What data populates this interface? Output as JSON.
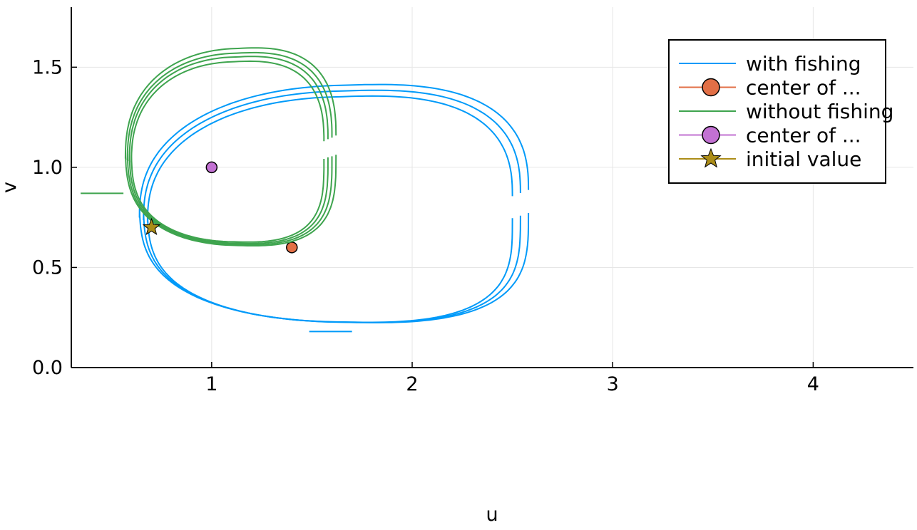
{
  "chart_data": {
    "type": "line",
    "title": "",
    "xlabel": "u",
    "ylabel": "v",
    "xlim": [
      0.3,
      4.5
    ],
    "ylim": [
      0.0,
      1.8
    ],
    "xticks": [
      {
        "value": 1,
        "label": "1"
      },
      {
        "value": 2,
        "label": "2"
      },
      {
        "value": 3,
        "label": "3"
      },
      {
        "value": 4,
        "label": "4"
      }
    ],
    "yticks": [
      {
        "value": 0.0,
        "label": "0.0"
      },
      {
        "value": 0.5,
        "label": "0.5"
      },
      {
        "value": 1.0,
        "label": "1.0"
      },
      {
        "value": 1.5,
        "label": "1.5"
      }
    ],
    "grid": true,
    "legend_position": "top-right",
    "series": [
      {
        "name": "with fishing",
        "kind": "orbit",
        "color": "#009AF9",
        "loops": [
          {
            "umin": 0.68,
            "umax": 2.5,
            "vmin": 0.18,
            "vmax": 1.4
          },
          {
            "umin": 0.66,
            "umax": 2.54,
            "vmin": 0.178,
            "vmax": 1.43
          },
          {
            "umin": 0.64,
            "umax": 2.58,
            "vmin": 0.176,
            "vmax": 1.46
          }
        ],
        "start": [
          0.7,
          0.7
        ],
        "end": [
          1.7,
          0.18
        ]
      },
      {
        "name": "center of ...",
        "kind": "point",
        "color": "#E26F46",
        "marker": "circle",
        "points": [
          [
            1.4,
            0.6
          ]
        ]
      },
      {
        "name": "without fishing",
        "kind": "orbit",
        "color": "#3EA44E",
        "loops": [
          {
            "umin": 0.6,
            "umax": 1.56,
            "vmin": 0.59,
            "vmax": 1.565
          },
          {
            "umin": 0.59,
            "umax": 1.58,
            "vmin": 0.582,
            "vmax": 1.59
          },
          {
            "umin": 0.58,
            "umax": 1.6,
            "vmin": 0.575,
            "vmax": 1.61
          },
          {
            "umin": 0.57,
            "umax": 1.62,
            "vmin": 0.568,
            "vmax": 1.635
          }
        ],
        "start": [
          0.7,
          0.7
        ],
        "end": [
          0.56,
          0.87
        ]
      },
      {
        "name": "center of ...",
        "kind": "point",
        "color": "#C271D2",
        "marker": "circle",
        "points": [
          [
            1.0,
            1.0
          ]
        ]
      },
      {
        "name": "initial value",
        "kind": "point",
        "color": "#AC8D18",
        "marker": "star",
        "points": [
          [
            0.7,
            0.7
          ]
        ]
      }
    ]
  }
}
